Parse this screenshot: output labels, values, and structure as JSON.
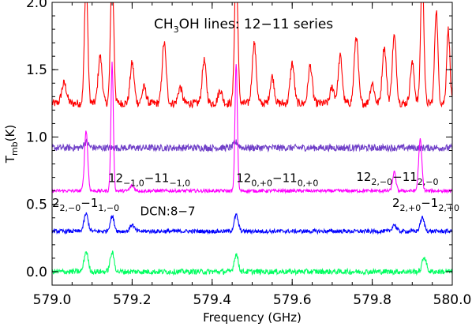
{
  "chart_data": {
    "type": "line",
    "title": "CH3OH lines: 12−11 series",
    "xlabel": "Frequency (GHz)",
    "ylabel": "T_mb(K)",
    "xlim": [
      579.0,
      580.0
    ],
    "ylim": [
      -0.1,
      2.0
    ],
    "x_ticks": [
      "579.0",
      "579.2",
      "579.4",
      "579.6",
      "579.8",
      "580.0"
    ],
    "y_ticks": [
      "0.0",
      "0.5",
      "1.0",
      "1.5",
      "2.0"
    ],
    "grid": false,
    "annotations": [
      {
        "main": "12",
        "sub": "−1,0",
        "main2": "−11",
        "sub2": "−1,0",
        "x": 579.14,
        "y": 0.665
      },
      {
        "main": "12",
        "sub": "0,+0",
        "main2": "−11",
        "sub2": "0,+0",
        "x": 579.46,
        "y": 0.665
      },
      {
        "main": "12",
        "sub": "2,−0",
        "main2": "−11",
        "sub2": "2,−0",
        "x": 579.76,
        "y": 0.675
      },
      {
        "main": "2",
        "sub": "2,−0",
        "main2": "−1",
        "sub2": "1,−0",
        "x": 579.0,
        "y": 0.48
      },
      {
        "main": "2",
        "sub": "2,+0",
        "main2": "−1",
        "sub2": "2,+0",
        "x": 579.85,
        "y": 0.48
      },
      {
        "main": "DCN:8−7",
        "x": 579.22,
        "y": 0.42
      }
    ],
    "series": [
      {
        "color": "#ff0000",
        "baseline": 1.25,
        "peaks": [
          [
            579.03,
            0.15,
            0.006
          ],
          [
            579.085,
            0.95,
            0.004
          ],
          [
            579.12,
            0.35,
            0.005
          ],
          [
            579.15,
            1.0,
            0.004
          ],
          [
            579.2,
            0.3,
            0.005
          ],
          [
            579.23,
            0.12,
            0.005
          ],
          [
            579.28,
            0.45,
            0.005
          ],
          [
            579.32,
            0.12,
            0.005
          ],
          [
            579.38,
            0.32,
            0.005
          ],
          [
            579.42,
            0.1,
            0.005
          ],
          [
            579.46,
            1.05,
            0.004
          ],
          [
            579.505,
            0.45,
            0.005
          ],
          [
            579.55,
            0.2,
            0.005
          ],
          [
            579.6,
            0.3,
            0.005
          ],
          [
            579.645,
            0.28,
            0.005
          ],
          [
            579.7,
            0.12,
            0.005
          ],
          [
            579.72,
            0.35,
            0.005
          ],
          [
            579.76,
            0.5,
            0.005
          ],
          [
            579.8,
            0.15,
            0.005
          ],
          [
            579.83,
            0.42,
            0.005
          ],
          [
            579.855,
            0.5,
            0.005
          ],
          [
            579.9,
            0.3,
            0.005
          ],
          [
            579.925,
            1.0,
            0.004
          ],
          [
            579.96,
            0.7,
            0.004
          ],
          [
            579.99,
            0.55,
            0.004
          ]
        ],
        "noise": 0.03
      },
      {
        "color": "#7040c8",
        "baseline": 0.92,
        "peaks": [
          [
            579.085,
            0.04,
            0.006
          ],
          [
            579.46,
            0.04,
            0.006
          ]
        ],
        "noise": 0.025
      },
      {
        "color": "#ff00ff",
        "baseline": 0.6,
        "peaks": [
          [
            579.085,
            0.45,
            0.004
          ],
          [
            579.15,
            0.95,
            0.003
          ],
          [
            579.2,
            0.04,
            0.005
          ],
          [
            579.46,
            0.95,
            0.003
          ],
          [
            579.855,
            0.14,
            0.004
          ],
          [
            579.92,
            0.38,
            0.004
          ]
        ],
        "noise": 0.012
      },
      {
        "color": "#0000ff",
        "baseline": 0.3,
        "peaks": [
          [
            579.085,
            0.13,
            0.005
          ],
          [
            579.15,
            0.11,
            0.005
          ],
          [
            579.2,
            0.05,
            0.005
          ],
          [
            579.46,
            0.12,
            0.005
          ],
          [
            579.855,
            0.05,
            0.005
          ],
          [
            579.925,
            0.1,
            0.005
          ]
        ],
        "noise": 0.015
      },
      {
        "color": "#00ff60",
        "baseline": 0.0,
        "peaks": [
          [
            579.085,
            0.15,
            0.005
          ],
          [
            579.15,
            0.14,
            0.005
          ],
          [
            579.46,
            0.13,
            0.005
          ],
          [
            579.93,
            0.11,
            0.005
          ]
        ],
        "noise": 0.02
      }
    ]
  }
}
